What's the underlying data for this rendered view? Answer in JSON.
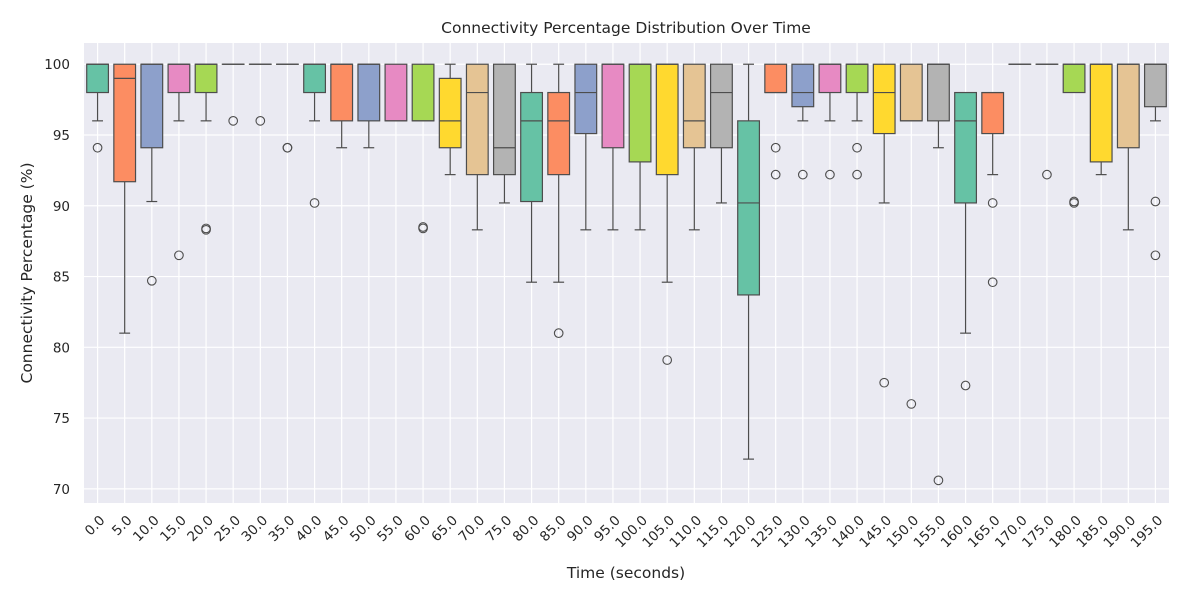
{
  "chart_data": {
    "type": "boxplot",
    "title": "Connectivity Percentage Distribution Over Time",
    "xlabel": "Time (seconds)",
    "ylabel": "Connectivity Percentage (%)",
    "ylim": [
      69,
      101.5
    ],
    "yticks": [
      70,
      75,
      80,
      85,
      90,
      95,
      100
    ],
    "grid": true,
    "categories": [
      "0.0",
      "5.0",
      "10.0",
      "15.0",
      "20.0",
      "25.0",
      "30.0",
      "35.0",
      "40.0",
      "45.0",
      "50.0",
      "55.0",
      "60.0",
      "65.0",
      "70.0",
      "75.0",
      "80.0",
      "85.0",
      "90.0",
      "95.0",
      "100.0",
      "105.0",
      "110.0",
      "115.0",
      "120.0",
      "125.0",
      "130.0",
      "135.0",
      "140.0",
      "145.0",
      "150.0",
      "155.0",
      "160.0",
      "165.0",
      "170.0",
      "175.0",
      "180.0",
      "185.0",
      "190.0",
      "195.0"
    ],
    "palette": [
      "#66c2a5",
      "#fc8d62",
      "#8da0cb",
      "#e78ac3",
      "#a6d854",
      "#ffd92f",
      "#e5c494",
      "#b3b3b3"
    ],
    "boxes": [
      {
        "q1": 98,
        "median": 100,
        "q3": 100,
        "whislo": 96,
        "whishi": 100,
        "fliers": [
          94.1
        ]
      },
      {
        "q1": 91.7,
        "median": 99,
        "q3": 100,
        "whislo": 81,
        "whishi": 100,
        "fliers": []
      },
      {
        "q1": 94.1,
        "median": 100,
        "q3": 100,
        "whislo": 90.3,
        "whishi": 100,
        "fliers": [
          84.7
        ]
      },
      {
        "q1": 98,
        "median": 100,
        "q3": 100,
        "whislo": 96,
        "whishi": 100,
        "fliers": [
          86.5
        ]
      },
      {
        "q1": 98,
        "median": 100,
        "q3": 100,
        "whislo": 96,
        "whishi": 100,
        "fliers": [
          88.4,
          88.3
        ]
      },
      {
        "q1": 100,
        "median": 100,
        "q3": 100,
        "whislo": 100,
        "whishi": 100,
        "fliers": [
          96
        ]
      },
      {
        "q1": 100,
        "median": 100,
        "q3": 100,
        "whislo": 100,
        "whishi": 100,
        "fliers": [
          96
        ]
      },
      {
        "q1": 100,
        "median": 100,
        "q3": 100,
        "whislo": 100,
        "whishi": 100,
        "fliers": [
          94.1,
          94.1
        ]
      },
      {
        "q1": 98,
        "median": 100,
        "q3": 100,
        "whislo": 96,
        "whishi": 100,
        "fliers": [
          90.2
        ]
      },
      {
        "q1": 96,
        "median": 100,
        "q3": 100,
        "whislo": 94.1,
        "whishi": 100,
        "fliers": []
      },
      {
        "q1": 96,
        "median": 100,
        "q3": 100,
        "whislo": 94.1,
        "whishi": 100,
        "fliers": []
      },
      {
        "q1": 96,
        "median": 96,
        "q3": 100,
        "whislo": 96,
        "whishi": 100,
        "fliers": []
      },
      {
        "q1": 96,
        "median": 96,
        "q3": 100,
        "whislo": 96,
        "whishi": 100,
        "fliers": [
          88.4,
          88.5
        ]
      },
      {
        "q1": 94.1,
        "median": 96,
        "q3": 99,
        "whislo": 92.2,
        "whishi": 100,
        "fliers": []
      },
      {
        "q1": 92.2,
        "median": 98,
        "q3": 100,
        "whislo": 88.3,
        "whishi": 100,
        "fliers": []
      },
      {
        "q1": 92.2,
        "median": 94.1,
        "q3": 100,
        "whislo": 90.2,
        "whishi": 100,
        "fliers": []
      },
      {
        "q1": 90.3,
        "median": 96,
        "q3": 98,
        "whislo": 84.6,
        "whishi": 100,
        "fliers": []
      },
      {
        "q1": 92.2,
        "median": 96,
        "q3": 98,
        "whislo": 84.6,
        "whishi": 100,
        "fliers": [
          81
        ]
      },
      {
        "q1": 95.1,
        "median": 98,
        "q3": 100,
        "whislo": 88.3,
        "whishi": 100,
        "fliers": []
      },
      {
        "q1": 94.1,
        "median": 100,
        "q3": 100,
        "whislo": 88.3,
        "whishi": 100,
        "fliers": []
      },
      {
        "q1": 93.1,
        "median": 100,
        "q3": 100,
        "whislo": 88.3,
        "whishi": 100,
        "fliers": []
      },
      {
        "q1": 92.2,
        "median": 100,
        "q3": 100,
        "whislo": 84.6,
        "whishi": 100,
        "fliers": [
          79.1
        ]
      },
      {
        "q1": 94.1,
        "median": 96,
        "q3": 100,
        "whislo": 88.3,
        "whishi": 100,
        "fliers": []
      },
      {
        "q1": 94.1,
        "median": 98,
        "q3": 100,
        "whislo": 90.2,
        "whishi": 100,
        "fliers": []
      },
      {
        "q1": 83.7,
        "median": 90.2,
        "q3": 96,
        "whislo": 72.1,
        "whishi": 100,
        "fliers": []
      },
      {
        "q1": 98,
        "median": 98,
        "q3": 100,
        "whislo": 98,
        "whishi": 100,
        "fliers": [
          94.1,
          92.2
        ]
      },
      {
        "q1": 97,
        "median": 98,
        "q3": 100,
        "whislo": 96,
        "whishi": 100,
        "fliers": [
          92.2
        ]
      },
      {
        "q1": 98,
        "median": 100,
        "q3": 100,
        "whislo": 96,
        "whishi": 100,
        "fliers": [
          92.2
        ]
      },
      {
        "q1": 98,
        "median": 100,
        "q3": 100,
        "whislo": 96,
        "whishi": 100,
        "fliers": [
          94.1,
          92.2
        ]
      },
      {
        "q1": 95.1,
        "median": 98,
        "q3": 100,
        "whislo": 90.2,
        "whishi": 100,
        "fliers": [
          77.5
        ]
      },
      {
        "q1": 96,
        "median": 96,
        "q3": 100,
        "whislo": 96,
        "whishi": 100,
        "fliers": [
          76
        ]
      },
      {
        "q1": 96,
        "median": 100,
        "q3": 100,
        "whislo": 94.1,
        "whishi": 100,
        "fliers": [
          70.6
        ]
      },
      {
        "q1": 90.2,
        "median": 96,
        "q3": 98,
        "whislo": 81,
        "whishi": 98,
        "fliers": [
          77.3
        ]
      },
      {
        "q1": 95.1,
        "median": 98,
        "q3": 98,
        "whislo": 92.2,
        "whishi": 98,
        "fliers": [
          90.2,
          84.6
        ]
      },
      {
        "q1": 100,
        "median": 100,
        "q3": 100,
        "whislo": 100,
        "whishi": 100,
        "fliers": []
      },
      {
        "q1": 100,
        "median": 100,
        "q3": 100,
        "whislo": 100,
        "whishi": 100,
        "fliers": [
          92.2
        ]
      },
      {
        "q1": 98,
        "median": 100,
        "q3": 100,
        "whislo": 98,
        "whishi": 100,
        "fliers": [
          90.2,
          90.3
        ]
      },
      {
        "q1": 93.1,
        "median": 100,
        "q3": 100,
        "whislo": 92.2,
        "whishi": 100,
        "fliers": []
      },
      {
        "q1": 94.1,
        "median": 100,
        "q3": 100,
        "whislo": 88.3,
        "whishi": 100,
        "fliers": []
      },
      {
        "q1": 97,
        "median": 100,
        "q3": 100,
        "whislo": 96,
        "whishi": 100,
        "fliers": [
          90.3,
          86.5
        ]
      }
    ]
  }
}
